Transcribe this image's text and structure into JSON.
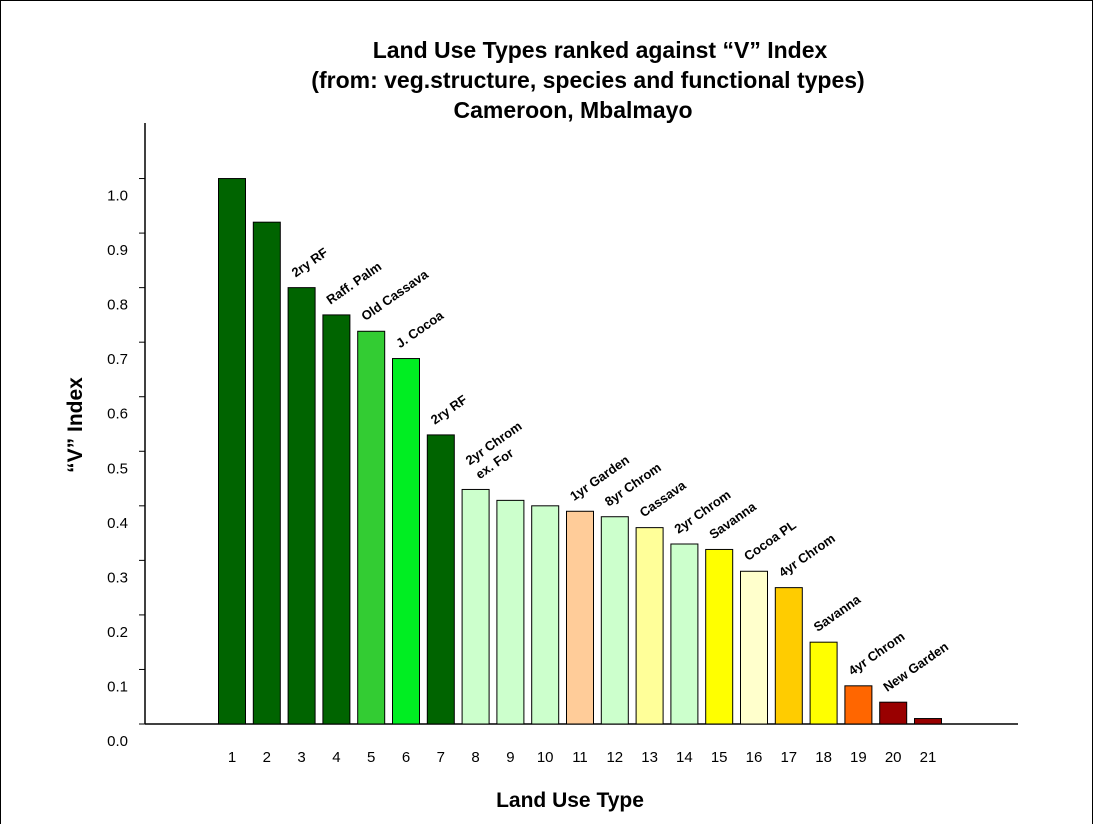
{
  "chart_data": {
    "type": "bar",
    "title": [
      "Land Use Types ranked against “V” Index",
      "(from: veg.structure, species and functional types)",
      "Cameroon, Mbalmayo"
    ],
    "x_label": "Land Use Type",
    "y_label": "“V” Index",
    "categories": [
      "1",
      "2",
      "3",
      "4",
      "5",
      "6",
      "7",
      "8",
      "9",
      "10",
      "11",
      "12",
      "13",
      "14",
      "15",
      "16",
      "17",
      "18",
      "19",
      "20",
      "21"
    ],
    "values": [
      1.0,
      0.92,
      0.8,
      0.75,
      0.72,
      0.67,
      0.53,
      0.43,
      0.41,
      0.4,
      0.39,
      0.38,
      0.36,
      0.33,
      0.32,
      0.28,
      0.25,
      0.15,
      0.07,
      0.04,
      0.01
    ],
    "colors": [
      "#006400",
      "#006400",
      "#006400",
      "#006400",
      "#33cc33",
      "#00ee22",
      "#006400",
      "#ccffcc",
      "#ccffcc",
      "#ccffcc",
      "#ffcc99",
      "#ccffcc",
      "#ffff99",
      "#ccffcc",
      "#ffff00",
      "#ffffcc",
      "#ffcc00",
      "#ffff00",
      "#ff6600",
      "#990000",
      "#990000"
    ],
    "labels": [
      null,
      null,
      "2ry RF",
      "Raff. Palm",
      "Old Cassava",
      "J. Cocoa",
      "2ry RF",
      [
        "2yr Chrom",
        "ex. For"
      ],
      null,
      null,
      "1yr Garden",
      "8yr Chrom",
      "Cassava",
      "2yr Chrom",
      "Savanna",
      "Cocoa PL",
      "4yr Chrom",
      "Savanna",
      "4yr Chrom",
      "New Garden",
      null
    ],
    "ylim": [
      0,
      1.1
    ],
    "yticks": [
      {
        "value": 0,
        "label": "0.0"
      },
      0.1,
      0.2,
      0.3,
      0.4,
      0.5,
      0.6,
      0.7,
      0.8,
      0.9,
      {
        "value": 1,
        "label": "1.0"
      }
    ]
  }
}
